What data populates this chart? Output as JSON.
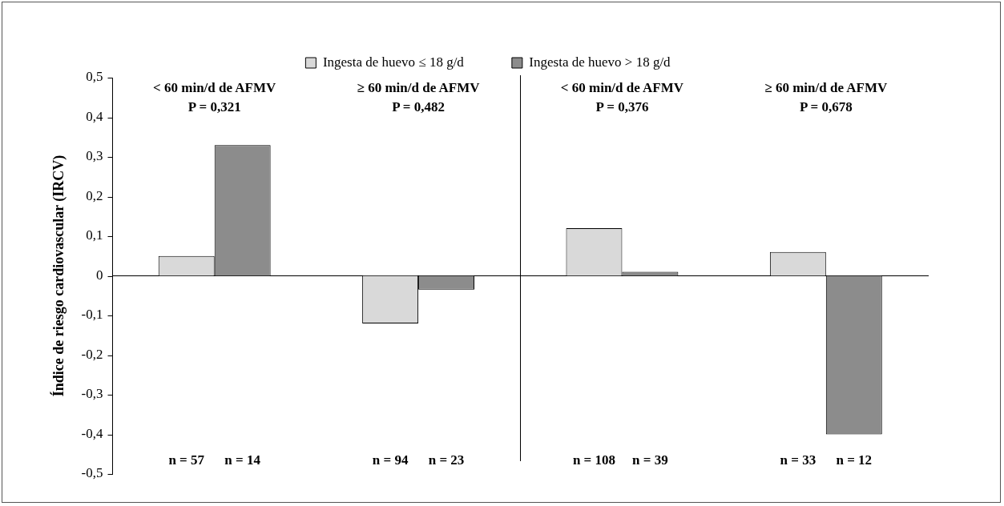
{
  "chart_data": {
    "type": "bar",
    "ylabel": "Índice de riesgo cardiovascular (IRCV)",
    "categories": [
      null,
      null,
      null,
      null
    ],
    "series": [
      {
        "name": "Ingesta de huevo ≤ 18 g/d",
        "color": "#d9d9d9",
        "values": [
          0.05,
          -0.12,
          0.12,
          0.06
        ]
      },
      {
        "name": "Ingesta de huevo > 18 g/d",
        "color": "#8c8c8c",
        "values": [
          0.33,
          -0.035,
          0.01,
          -0.4
        ]
      }
    ],
    "ylim": [
      -0.5,
      0.5
    ],
    "yticks": [
      {
        "value": -0.5,
        "label": "-0,5"
      },
      {
        "value": -0.4,
        "label": "-0,4"
      },
      {
        "value": -0.3,
        "label": "-0,3"
      },
      {
        "value": -0.2,
        "label": "-0,2"
      },
      {
        "value": -0.1,
        "label": "-0,1"
      },
      {
        "value": 0,
        "label": "0"
      },
      {
        "value": 0.1,
        "label": "0,1"
      },
      {
        "value": 0.2,
        "label": "0,2"
      },
      {
        "value": 0.3,
        "label": "0,3"
      },
      {
        "value": 0.4,
        "label": "0,4"
      },
      {
        "value": 0.5,
        "label": "0,5"
      }
    ],
    "annotations": [
      "< 60 min/d de AFMV",
      "P = 0,321",
      "≥ 60 min/d de AFMV",
      "P = 0,482",
      "< 60 min/d de AFMV",
      "P = 0,376",
      "≥ 60 min/d de AFMV",
      "P = 0,678",
      "n = 57",
      "n = 14",
      "n = 94",
      "n = 23",
      "n = 108",
      "n = 39",
      "n = 33",
      "n = 12"
    ],
    "legend": "top"
  }
}
